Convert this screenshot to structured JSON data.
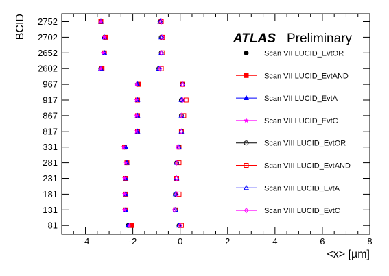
{
  "chart_data": {
    "type": "scatter",
    "title": "",
    "branding": {
      "bold": "ATLAS",
      "plain": "Preliminary"
    },
    "xlabel": "<x> [µm]",
    "ylabel": "BCID",
    "xlim": [
      -5,
      8
    ],
    "xticks": [
      -4,
      -2,
      0,
      2,
      4,
      6,
      8
    ],
    "categories": [
      "2752",
      "2702",
      "2652",
      "2602",
      "967",
      "917",
      "867",
      "817",
      "331",
      "281",
      "231",
      "181",
      "131",
      "81"
    ],
    "legend_position": "right",
    "series": [
      {
        "name": "Scan VII LUCID_EvtOR",
        "color": "#000000",
        "marker": "circle-filled",
        "values": [
          -3.35,
          -3.2,
          -3.2,
          -3.35,
          -1.8,
          -1.8,
          -1.8,
          -1.8,
          -2.35,
          -2.25,
          -2.3,
          -2.3,
          -2.3,
          -2.2
        ]
      },
      {
        "name": "Scan VII LUCID_EvtAND",
        "color": "#ff0000",
        "marker": "square-filled",
        "values": [
          -3.35,
          -3.15,
          -3.2,
          -3.3,
          -1.75,
          -1.8,
          -1.8,
          -1.8,
          -2.35,
          -2.25,
          -2.3,
          -2.3,
          -2.3,
          -2.05
        ]
      },
      {
        "name": "Scan VII LUCID_EvtA",
        "color": "#0000ff",
        "marker": "triangle-filled",
        "values": [
          -3.35,
          -3.2,
          -3.2,
          -3.35,
          -1.8,
          -1.8,
          -1.8,
          -1.8,
          -2.3,
          -2.25,
          -2.3,
          -2.3,
          -2.3,
          -2.2
        ]
      },
      {
        "name": "Scan VII LUCID_EvtC",
        "color": "#ff00ff",
        "marker": "star",
        "values": [
          -3.35,
          -3.2,
          -3.25,
          -3.35,
          -1.85,
          -1.85,
          -1.85,
          -1.85,
          -2.4,
          -2.3,
          -2.35,
          -2.35,
          -2.35,
          -2.15
        ]
      },
      {
        "name": "Scan VIII LUCID_EvtOR",
        "color": "#000000",
        "marker": "circle-open",
        "values": [
          -0.85,
          -0.8,
          -0.8,
          -0.9,
          0.1,
          0.05,
          0.05,
          0.05,
          -0.05,
          -0.15,
          -0.15,
          -0.2,
          -0.2,
          -0.05
        ]
      },
      {
        "name": "Scan VIII LUCID_EvtAND",
        "color": "#ff0000",
        "marker": "square-open",
        "values": [
          -0.8,
          -0.75,
          -0.75,
          -0.8,
          0.1,
          0.25,
          0.15,
          0.05,
          -0.05,
          -0.05,
          -0.15,
          -0.05,
          -0.2,
          0.05
        ]
      },
      {
        "name": "Scan VIII LUCID_EvtA",
        "color": "#0000ff",
        "marker": "triangle-open",
        "values": [
          -0.85,
          -0.8,
          -0.8,
          -0.9,
          0.1,
          0.05,
          0.05,
          0.05,
          -0.05,
          -0.15,
          -0.15,
          -0.2,
          -0.2,
          -0.05
        ]
      },
      {
        "name": "Scan VIII LUCID_EvtC",
        "color": "#ff00ff",
        "marker": "diamond-open",
        "values": [
          -0.8,
          -0.75,
          -0.8,
          -0.85,
          0.1,
          0.1,
          0.05,
          0.05,
          -0.1,
          -0.15,
          -0.15,
          -0.15,
          -0.25,
          0.0
        ]
      }
    ]
  }
}
